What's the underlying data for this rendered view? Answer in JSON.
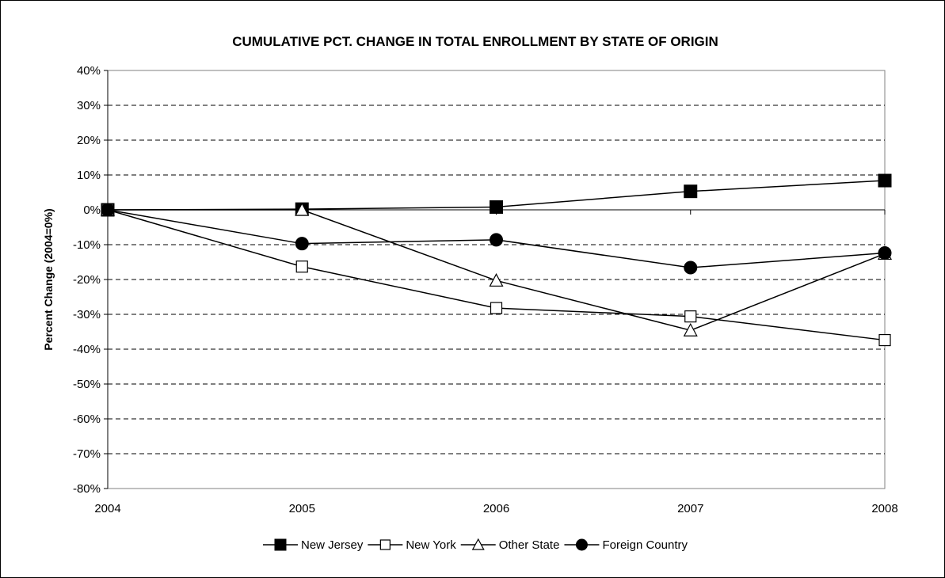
{
  "chart_data": {
    "type": "line",
    "title": "CUMULATIVE PCT. CHANGE IN TOTAL ENROLLMENT BY STATE OF ORIGIN",
    "ylabel": "Percent Change (2004=0%)",
    "xlabel": "",
    "categories": [
      "2004",
      "2005",
      "2006",
      "2007",
      "2008"
    ],
    "ylim": [
      -80,
      40
    ],
    "y_ticks": [
      40,
      30,
      20,
      10,
      0,
      -10,
      -20,
      -30,
      -40,
      -50,
      -60,
      -70,
      -80
    ],
    "y_tick_labels": [
      "40%",
      "30%",
      "20%",
      "10%",
      "0%",
      "-10%",
      "-20%",
      "-30%",
      "-40%",
      "-50%",
      "-60%",
      "-70%",
      "-80%"
    ],
    "grid": "horizontal dashed",
    "legend_position": "bottom",
    "series": [
      {
        "name": "New Jersey",
        "marker": "filled-square",
        "values": [
          0,
          0.2,
          0.8,
          5.3,
          8.4
        ]
      },
      {
        "name": "New York",
        "marker": "open-square",
        "values": [
          0,
          -16.3,
          -28.2,
          -30.6,
          -37.4
        ]
      },
      {
        "name": "Other State",
        "marker": "open-triangle",
        "values": [
          0,
          0,
          -20.3,
          -34.6,
          -12.6
        ]
      },
      {
        "name": "Foreign Country",
        "marker": "filled-circle",
        "values": [
          0,
          -9.7,
          -8.6,
          -16.6,
          -12.4
        ]
      }
    ]
  }
}
